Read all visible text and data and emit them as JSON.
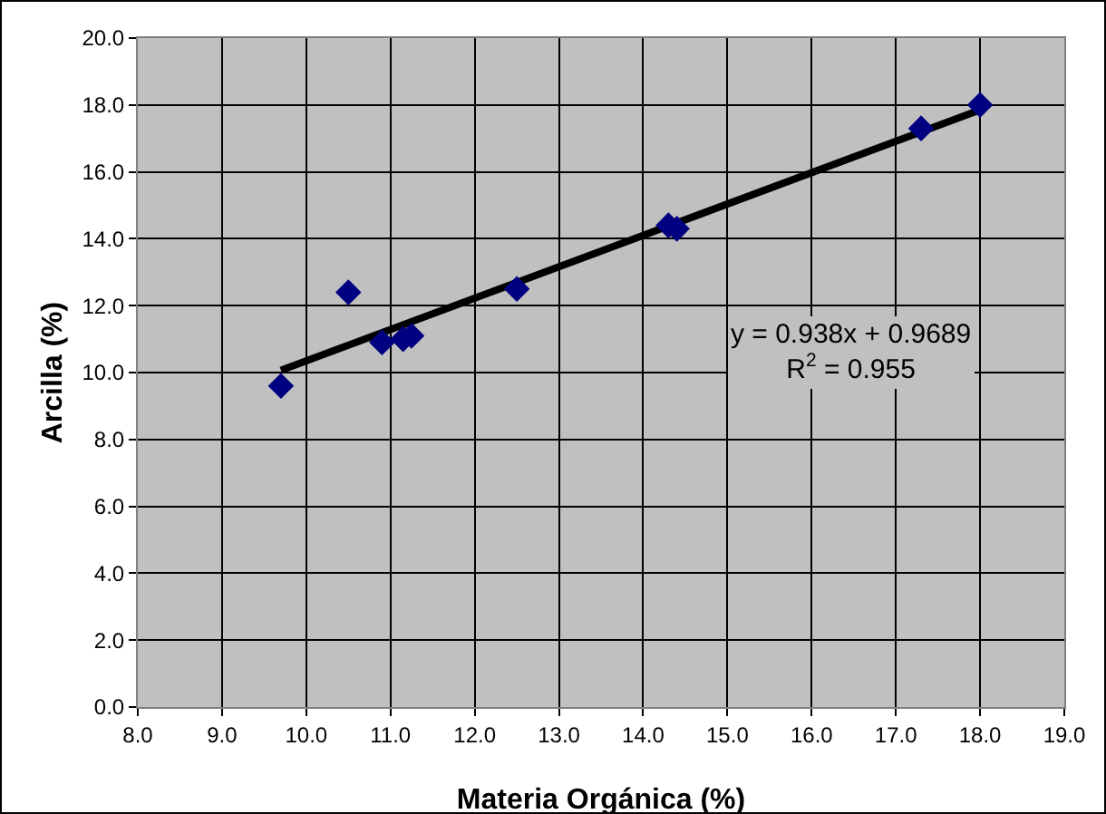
{
  "chart_data": {
    "type": "scatter",
    "xlabel": "Materia Orgánica (%)",
    "ylabel": "Arcilla (%)",
    "x": [
      9.7,
      10.5,
      10.9,
      11.15,
      11.25,
      12.5,
      14.3,
      14.4,
      17.3,
      18.0
    ],
    "series": [
      {
        "type": "line",
        "color": "#000000",
        "marker": "none",
        "line_style": "solid",
        "x": [
          9.7,
          18.0
        ],
        "values": [
          10.07,
          17.85
        ]
      },
      {
        "type": "scatter",
        "color": "#000080",
        "marker": "diamond",
        "values": [
          9.6,
          12.4,
          10.9,
          11.0,
          11.1,
          12.5,
          14.4,
          14.3,
          17.3,
          18.0
        ]
      }
    ],
    "annotations": [
      "y = 0.938x + 0.9689\nR$^{2}$ = 0.955"
    ],
    "xlim": [
      8,
      19
    ],
    "xticks": [
      {
        "value": 8,
        "label": "8.0"
      },
      {
        "value": 9,
        "label": "9.0"
      },
      {
        "value": 10,
        "label": "10.0"
      },
      {
        "value": 11,
        "label": "11.0"
      },
      {
        "value": 12,
        "label": "12.0"
      },
      {
        "value": 13,
        "label": "13.0"
      },
      {
        "value": 14,
        "label": "14.0"
      },
      {
        "value": 15,
        "label": "15.0"
      },
      {
        "value": 16,
        "label": "16.0"
      },
      {
        "value": 17,
        "label": "17.0"
      },
      {
        "value": 18,
        "label": "18.0"
      },
      {
        "value": 19,
        "label": "19.0"
      }
    ],
    "ylim": [
      0,
      20
    ],
    "yticks": [
      {
        "value": 0,
        "label": "0.0"
      },
      {
        "value": 2,
        "label": "2.0"
      },
      {
        "value": 4,
        "label": "4.0"
      },
      {
        "value": 6,
        "label": "6.0"
      },
      {
        "value": 8,
        "label": "8.0"
      },
      {
        "value": 10,
        "label": "10.0"
      },
      {
        "value": 12,
        "label": "12.0"
      },
      {
        "value": 14,
        "label": "14.0"
      },
      {
        "value": 16,
        "label": "16.0"
      },
      {
        "value": 18,
        "label": "18.0"
      },
      {
        "value": 20,
        "label": "20.0"
      }
    ],
    "grid": true
  }
}
